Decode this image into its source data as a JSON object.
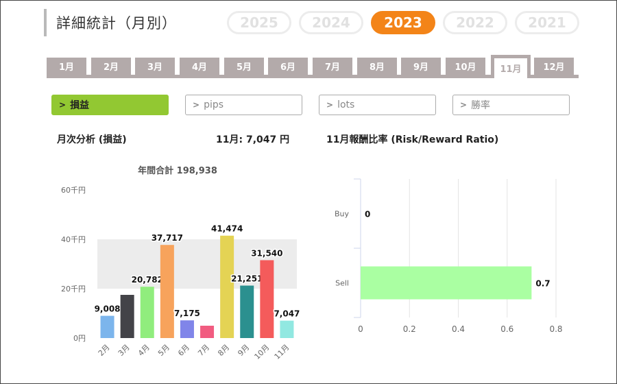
{
  "page": {
    "title": "詳細統計（月別）"
  },
  "years": [
    {
      "label": "2025",
      "active": false
    },
    {
      "label": "2024",
      "active": false
    },
    {
      "label": "2023",
      "active": true
    },
    {
      "label": "2022",
      "active": false
    },
    {
      "label": "2021",
      "active": false
    }
  ],
  "months": [
    "1月",
    "2月",
    "3月",
    "4月",
    "5月",
    "6月",
    "7月",
    "8月",
    "9月",
    "10月",
    "11月",
    "12月"
  ],
  "active_month": "11月",
  "metrics": [
    {
      "label": "損益",
      "active": true
    },
    {
      "label": "pips",
      "active": false
    },
    {
      "label": "lots",
      "active": false
    },
    {
      "label": "勝率",
      "active": false
    }
  ],
  "labels": {
    "monthly_analysis": "月次分析 (損益)",
    "month_summary": "11月:  7,047 円",
    "rr_title": "11月報酬比率 (Risk/Reward Ratio)"
  },
  "colors": {
    "accent": "#f38418",
    "metric_active": "#92c832",
    "tab": "#b3aaaa"
  },
  "chart_data": [
    {
      "type": "bar",
      "title": "年間合計 198,938",
      "categories": [
        "2月",
        "3月",
        "4月",
        "5月",
        "6月",
        "7月",
        "8月",
        "9月",
        "10月",
        "11月"
      ],
      "values": [
        9008,
        17500,
        20782,
        37717,
        7175,
        5000,
        41474,
        21251,
        31540,
        7047
      ],
      "data_labels": [
        "9,008",
        "",
        "20,782",
        "37,717",
        "7,175",
        "",
        "41,474",
        "21,251",
        "31,540",
        "7,047"
      ],
      "colors": [
        "#7cb5ec",
        "#434348",
        "#90ed7d",
        "#f7a35c",
        "#8085e9",
        "#f15c80",
        "#e4d354",
        "#2b908f",
        "#f45b5b",
        "#91e8e1"
      ],
      "ylim": [
        0,
        60000
      ],
      "yticks": [
        0,
        20000,
        40000,
        60000
      ],
      "ytick_labels": [
        "0円",
        "20千円",
        "40千円",
        "60千円"
      ],
      "xlabel": "",
      "ylabel": "",
      "grid": "bands"
    },
    {
      "type": "bar",
      "orientation": "horizontal",
      "categories": [
        "Buy",
        "Sell"
      ],
      "values": [
        0,
        0.7
      ],
      "data_labels": [
        "0",
        "0.7"
      ],
      "color": "#aaffa2",
      "xlim": [
        0,
        0.8
      ],
      "xticks": [
        0,
        0.2,
        0.4,
        0.6,
        0.8
      ],
      "xtick_labels": [
        "0",
        "0.2",
        "0.4",
        "0.6",
        "0.8"
      ],
      "grid": true
    }
  ]
}
